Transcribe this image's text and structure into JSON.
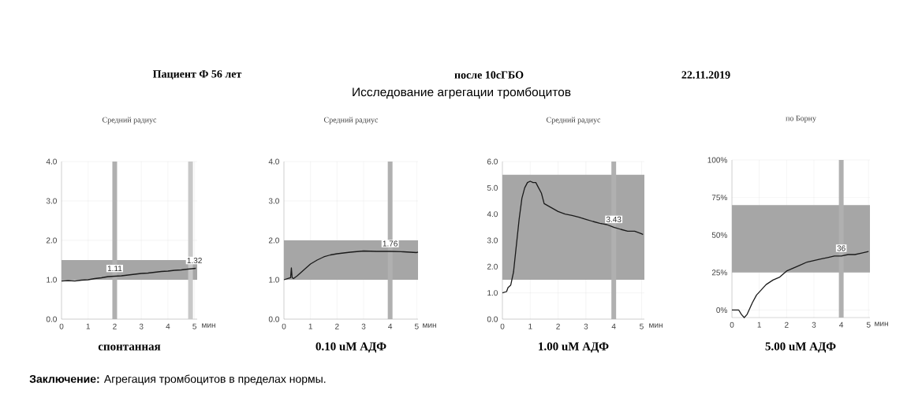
{
  "chart_data": [
    {
      "type": "line",
      "title": "Средний радиус",
      "xlabel": "мин",
      "xlim": [
        0,
        5.1
      ],
      "ylim": [
        0,
        4
      ],
      "xticks": [
        0,
        1,
        2,
        3,
        4,
        5
      ],
      "yticks": [
        {
          "value": 0,
          "label": "0.0"
        },
        {
          "value": 1,
          "label": "1.0"
        },
        {
          "value": 2,
          "label": "2.0"
        },
        {
          "value": 3,
          "label": "3.0"
        },
        {
          "value": 4,
          "label": "4.0"
        }
      ],
      "grid": true,
      "line_style": "solid",
      "series": [
        {
          "color": "#1a1a1a",
          "x": [
            0,
            0.25,
            0.5,
            0.75,
            1,
            1.25,
            1.5,
            1.75,
            2,
            2.25,
            2.5,
            2.75,
            3,
            3.25,
            3.5,
            3.75,
            4,
            4.25,
            4.5,
            4.75,
            5.05
          ],
          "values": [
            0.97,
            0.98,
            0.97,
            0.99,
            1.0,
            1.03,
            1.05,
            1.08,
            1.09,
            1.1,
            1.12,
            1.14,
            1.16,
            1.17,
            1.19,
            1.21,
            1.22,
            1.24,
            1.25,
            1.27,
            1.29
          ]
        }
      ],
      "bands": [
        {
          "axis": "y",
          "from": 1.0,
          "to": 1.5,
          "color": "#a6a6a6"
        }
      ],
      "ref_lines": [
        {
          "axis": "x",
          "value": 2,
          "color": "#b0b0b0"
        },
        {
          "axis": "x",
          "value": 4.85,
          "color": "#c8c8c8"
        }
      ],
      "annotations": [
        "спонтанная",
        "Пациент Ф  56 лет",
        "после 10сГБО",
        "22.11.2019",
        "Исследование агрегации тромбоцитов",
        "**Заключение:** Агрегация тромбоцитов в пределах нормы.",
        {
          "text": "1.11",
          "x": 2,
          "y": 1.09
        },
        {
          "text": "1.32",
          "x": 5,
          "y": 1.29
        }
      ]
    },
    {
      "type": "line",
      "title": "Средний радиус",
      "xlabel": "мин",
      "xlim": [
        0,
        5.05
      ],
      "ylim": [
        0,
        4
      ],
      "xticks": [
        0,
        1,
        2,
        3,
        4,
        5
      ],
      "yticks": [
        {
          "value": 0,
          "label": "0.0"
        },
        {
          "value": 1,
          "label": "1.0"
        },
        {
          "value": 2,
          "label": "2.0"
        },
        {
          "value": 3,
          "label": "3.0"
        },
        {
          "value": 4,
          "label": "4.0"
        }
      ],
      "grid": true,
      "line_style": "solid",
      "series": [
        {
          "color": "#1a1a1a",
          "x": [
            0,
            0.15,
            0.25,
            0.28,
            0.31,
            0.36,
            0.5,
            0.75,
            1,
            1.25,
            1.5,
            1.75,
            2,
            2.5,
            3,
            3.5,
            4,
            4.5,
            5,
            5.05
          ],
          "values": [
            1.0,
            1.03,
            1.05,
            1.3,
            1.05,
            1.03,
            1.1,
            1.25,
            1.4,
            1.5,
            1.58,
            1.63,
            1.66,
            1.7,
            1.73,
            1.72,
            1.72,
            1.71,
            1.69,
            1.7
          ]
        }
      ],
      "bands": [
        {
          "axis": "y",
          "from": 1.0,
          "to": 2.0,
          "color": "#a6a6a6"
        }
      ],
      "ref_lines": [
        {
          "axis": "x",
          "value": 4,
          "color": "#b0b0b0"
        }
      ],
      "annotations": [
        "0.10 uM АДФ",
        {
          "text": "1.76",
          "x": 4,
          "y": 1.72
        }
      ]
    },
    {
      "type": "line",
      "title": "Средний радиус",
      "xlabel": "мин",
      "xlim": [
        0,
        5.1
      ],
      "ylim": [
        0,
        6
      ],
      "xticks": [
        0,
        1,
        2,
        3,
        4,
        5
      ],
      "yticks": [
        {
          "value": 0,
          "label": "0.0"
        },
        {
          "value": 1,
          "label": "1.0"
        },
        {
          "value": 2,
          "label": "2.0"
        },
        {
          "value": 3,
          "label": "3.0"
        },
        {
          "value": 4,
          "label": "4.0"
        },
        {
          "value": 5,
          "label": "5.0"
        },
        {
          "value": 6,
          "label": "6.0"
        }
      ],
      "grid": true,
      "line_style": "solid",
      "series": [
        {
          "color": "#1a1a1a",
          "x": [
            0,
            0.15,
            0.2,
            0.3,
            0.4,
            0.5,
            0.6,
            0.7,
            0.8,
            0.9,
            1.0,
            1.1,
            1.2,
            1.3,
            1.4,
            1.5,
            1.75,
            2.0,
            2.25,
            2.5,
            2.75,
            3.0,
            3.25,
            3.5,
            3.75,
            4.0,
            4.25,
            4.5,
            4.75,
            5.0,
            5.05
          ],
          "values": [
            1.0,
            1.05,
            1.2,
            1.3,
            1.8,
            2.8,
            3.8,
            4.6,
            5.0,
            5.2,
            5.25,
            5.2,
            5.2,
            5.0,
            4.8,
            4.4,
            4.25,
            4.1,
            4.0,
            3.95,
            3.88,
            3.8,
            3.72,
            3.65,
            3.6,
            3.5,
            3.42,
            3.35,
            3.35,
            3.25,
            3.22
          ]
        }
      ],
      "bands": [
        {
          "axis": "y",
          "from": 1.5,
          "to": 5.5,
          "color": "#a6a6a6"
        }
      ],
      "ref_lines": [
        {
          "axis": "x",
          "value": 4,
          "color": "#b0b0b0"
        }
      ],
      "annotations": [
        "1.00 uM АДФ",
        {
          "text": "3.43",
          "x": 4,
          "y": 3.5
        }
      ]
    },
    {
      "type": "line",
      "title": "по Борну",
      "xlabel": "мин",
      "xlim": [
        0,
        5.05
      ],
      "ylim": [
        -5,
        100
      ],
      "xticks": [
        0,
        1,
        2,
        3,
        4,
        5
      ],
      "yticks": [
        {
          "value": 0,
          "label": "0%"
        },
        {
          "value": 25,
          "label": "25%"
        },
        {
          "value": 50,
          "label": "50%"
        },
        {
          "value": 75,
          "label": "75%"
        },
        {
          "value": 100,
          "label": "100%"
        }
      ],
      "grid": true,
      "line_style": "solid",
      "series": [
        {
          "color": "#1a1a1a",
          "x": [
            0,
            0.25,
            0.35,
            0.45,
            0.55,
            0.65,
            0.75,
            0.9,
            1,
            1.25,
            1.5,
            1.75,
            2,
            2.25,
            2.5,
            2.75,
            3,
            3.25,
            3.5,
            3.75,
            4,
            4.25,
            4.5,
            4.75,
            5
          ],
          "values": [
            0,
            0,
            -3,
            -5,
            -3,
            1,
            5,
            10,
            12,
            17,
            20,
            22,
            26,
            28,
            30,
            32,
            33,
            34,
            35,
            36,
            36,
            37,
            37,
            38,
            39
          ]
        }
      ],
      "bands": [
        {
          "axis": "y",
          "from": 25,
          "to": 70,
          "color": "#a6a6a6"
        }
      ],
      "ref_lines": [
        {
          "axis": "x",
          "value": 4,
          "color": "#b0b0b0"
        }
      ],
      "annotations": [
        "5.00 uM АДФ",
        {
          "text": "36",
          "x": 4,
          "y": 36
        }
      ]
    }
  ]
}
